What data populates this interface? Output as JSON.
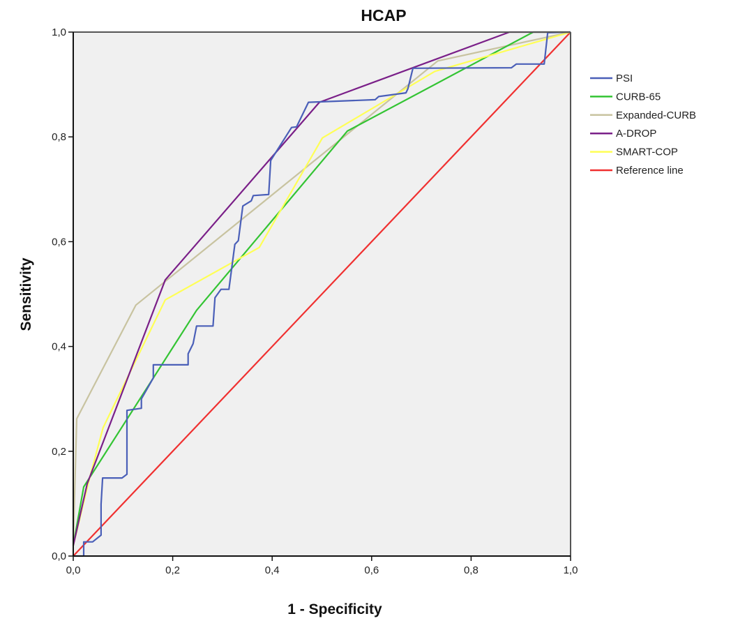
{
  "chart_data": {
    "type": "line",
    "title": "HCAP",
    "xlabel": "1 - Specificity",
    "ylabel": "Sensitivity",
    "xlim": [
      0,
      1
    ],
    "ylim": [
      0,
      1
    ],
    "xticks": [
      "0,0",
      "0,2",
      "0,4",
      "0,6",
      "0,8",
      "1,0"
    ],
    "yticks": [
      "0,0",
      "0,2",
      "0,4",
      "0,6",
      "0,8",
      "1,0"
    ],
    "tick_values": [
      0,
      0.2,
      0.4,
      0.6,
      0.8,
      1.0
    ],
    "grid": false,
    "legend_position": "right",
    "background": "#f0f0f0",
    "series": [
      {
        "name": "PSI",
        "color": "#4a5fb8",
        "points": [
          [
            0,
            0
          ],
          [
            0.021,
            0
          ],
          [
            0.021,
            0.027
          ],
          [
            0.039,
            0.027
          ],
          [
            0.056,
            0.04
          ],
          [
            0.056,
            0.099
          ],
          [
            0.059,
            0.149
          ],
          [
            0.098,
            0.149
          ],
          [
            0.108,
            0.156
          ],
          [
            0.108,
            0.278
          ],
          [
            0.137,
            0.282
          ],
          [
            0.137,
            0.3
          ],
          [
            0.161,
            0.34
          ],
          [
            0.161,
            0.365
          ],
          [
            0.231,
            0.365
          ],
          [
            0.231,
            0.386
          ],
          [
            0.241,
            0.405
          ],
          [
            0.248,
            0.439
          ],
          [
            0.281,
            0.439
          ],
          [
            0.285,
            0.493
          ],
          [
            0.297,
            0.509
          ],
          [
            0.313,
            0.509
          ],
          [
            0.325,
            0.595
          ],
          [
            0.332,
            0.602
          ],
          [
            0.341,
            0.668
          ],
          [
            0.358,
            0.678
          ],
          [
            0.362,
            0.688
          ],
          [
            0.393,
            0.69
          ],
          [
            0.397,
            0.755
          ],
          [
            0.439,
            0.818
          ],
          [
            0.449,
            0.819
          ],
          [
            0.473,
            0.866
          ],
          [
            0.607,
            0.871
          ],
          [
            0.614,
            0.877
          ],
          [
            0.669,
            0.884
          ],
          [
            0.673,
            0.892
          ],
          [
            0.683,
            0.931
          ],
          [
            0.881,
            0.932
          ],
          [
            0.891,
            0.939
          ],
          [
            0.947,
            0.939
          ],
          [
            0.954,
            0.999
          ],
          [
            1,
            1
          ]
        ]
      },
      {
        "name": "CURB-65",
        "color": "#33c433",
        "points": [
          [
            0,
            0.02
          ],
          [
            0.021,
            0.132
          ],
          [
            0.248,
            0.469
          ],
          [
            0.551,
            0.811
          ],
          [
            0.925,
            1
          ],
          [
            1,
            1
          ]
        ]
      },
      {
        "name": "Expanded-CURB",
        "color": "#c8c3a0",
        "points": [
          [
            0,
            0.02
          ],
          [
            0.007,
            0.262
          ],
          [
            0.126,
            0.479
          ],
          [
            0.733,
            0.945
          ],
          [
            1,
            1
          ]
        ]
      },
      {
        "name": "A-DROP",
        "color": "#7a1f88",
        "points": [
          [
            0,
            0.02
          ],
          [
            0.028,
            0.138
          ],
          [
            0.185,
            0.527
          ],
          [
            0.495,
            0.866
          ],
          [
            0.877,
            1
          ],
          [
            1,
            1
          ]
        ]
      },
      {
        "name": "SMART-COP",
        "color": "#ffff55",
        "points": [
          [
            0,
            0.02
          ],
          [
            0.031,
            0.142
          ],
          [
            0.06,
            0.245
          ],
          [
            0.185,
            0.489
          ],
          [
            0.374,
            0.589
          ],
          [
            0.501,
            0.798
          ],
          [
            0.727,
            0.925
          ],
          [
            1,
            1
          ]
        ]
      },
      {
        "name": "Reference line",
        "color": "#f03030",
        "points": [
          [
            0,
            0
          ],
          [
            1,
            1
          ]
        ]
      }
    ]
  }
}
